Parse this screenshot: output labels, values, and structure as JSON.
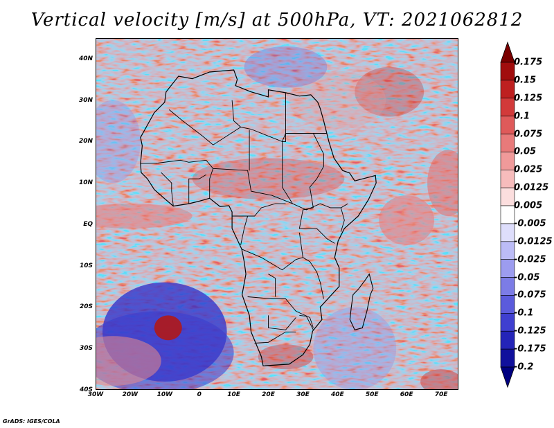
{
  "title": "Vertical velocity [m/s] at 500hPa, VT: 2021062812",
  "footer": "GrADS: IGES/COLA",
  "map": {
    "lat_range": [
      -40,
      45
    ],
    "lon_range": [
      -30,
      75
    ],
    "lat_tick_labels": [
      "40N",
      "30N",
      "20N",
      "10N",
      "EQ",
      "10S",
      "20S",
      "30S",
      "40S"
    ],
    "lon_tick_labels": [
      "30W",
      "20W",
      "10W",
      "0",
      "10E",
      "20E",
      "30E",
      "40E",
      "50E",
      "60E",
      "70E"
    ],
    "field": "vertical velocity at 500hPa",
    "features": [
      "African coastline",
      "country borders",
      "cyclonic swirl near 26S 10W"
    ]
  },
  "colorbar": {
    "labels": [
      "0.175",
      "0.15",
      "0.125",
      "0.1",
      "0.075",
      "0.05",
      "0.025",
      "0.0125",
      "0.005",
      "-0.005",
      "-0.0125",
      "-0.025",
      "-0.05",
      "-0.075",
      "-0.1",
      "-0.125",
      "-0.175",
      "-0.2"
    ],
    "colors": [
      "#7a0000",
      "#a10d0d",
      "#be2020",
      "#d23a3a",
      "#df5a5a",
      "#e87a7a",
      "#f09a9a",
      "#f7bcbc",
      "#fcdede",
      "#ffffff",
      "#dedefc",
      "#bcbcf6",
      "#9c9cef",
      "#7c7ce6",
      "#5b5bdc",
      "#3f3fd0",
      "#2424b8",
      "#10109c",
      "#000080"
    ]
  }
}
